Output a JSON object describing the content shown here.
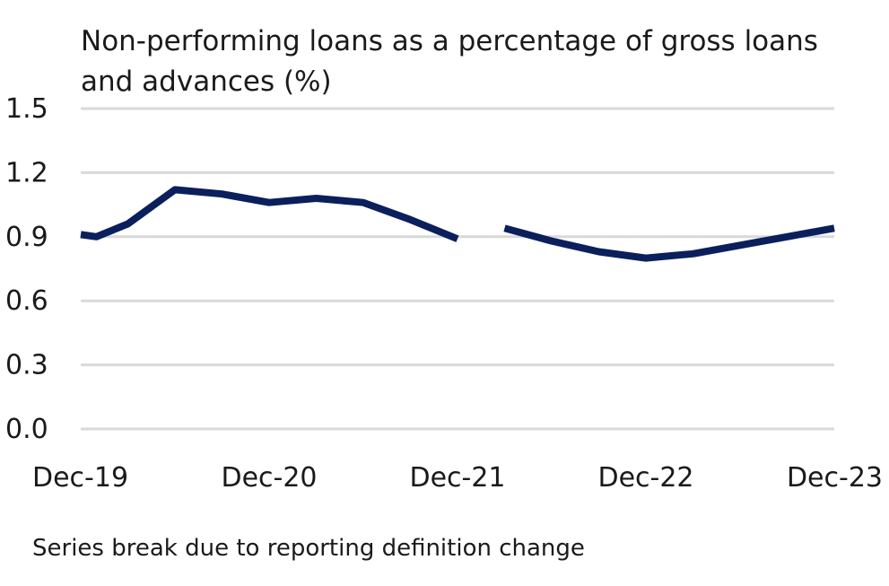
{
  "chart_data": {
    "type": "line",
    "title": "Non-performing loans as a percentage of gross loans and advances (%)",
    "xlabel": "",
    "ylabel": "",
    "ylim": [
      0,
      1.5
    ],
    "yticks": [
      "0.0",
      "0.3",
      "0.6",
      "0.9",
      "1.2",
      "1.5"
    ],
    "xlim": [
      "Dec-19",
      "Dec-23"
    ],
    "xticks": [
      "Dec-19",
      "Dec-20",
      "Dec-21",
      "Dec-22",
      "Dec-23"
    ],
    "grid": true,
    "legend": "none",
    "note": "Series break due to reporting definition change",
    "colors": {
      "line": "#0b1f5c",
      "grid": "#d9d9d9"
    },
    "series": [
      {
        "segment": "before-break",
        "x": [
          "Dec-19",
          "Jan-20",
          "Mar-20",
          "Jun-20",
          "Sep-20",
          "Dec-20",
          "Mar-21",
          "Jun-21",
          "Sep-21",
          "Dec-21"
        ],
        "values": [
          0.91,
          0.9,
          0.96,
          1.12,
          1.1,
          1.06,
          1.08,
          1.06,
          0.98,
          0.89
        ]
      },
      {
        "segment": "after-break",
        "x": [
          "Mar-22",
          "Jun-22",
          "Sep-22",
          "Dec-22",
          "Mar-23",
          "Jun-23",
          "Sep-23",
          "Dec-23"
        ],
        "values": [
          0.94,
          0.88,
          0.83,
          0.8,
          0.82,
          0.86,
          0.9,
          0.94
        ]
      }
    ]
  }
}
